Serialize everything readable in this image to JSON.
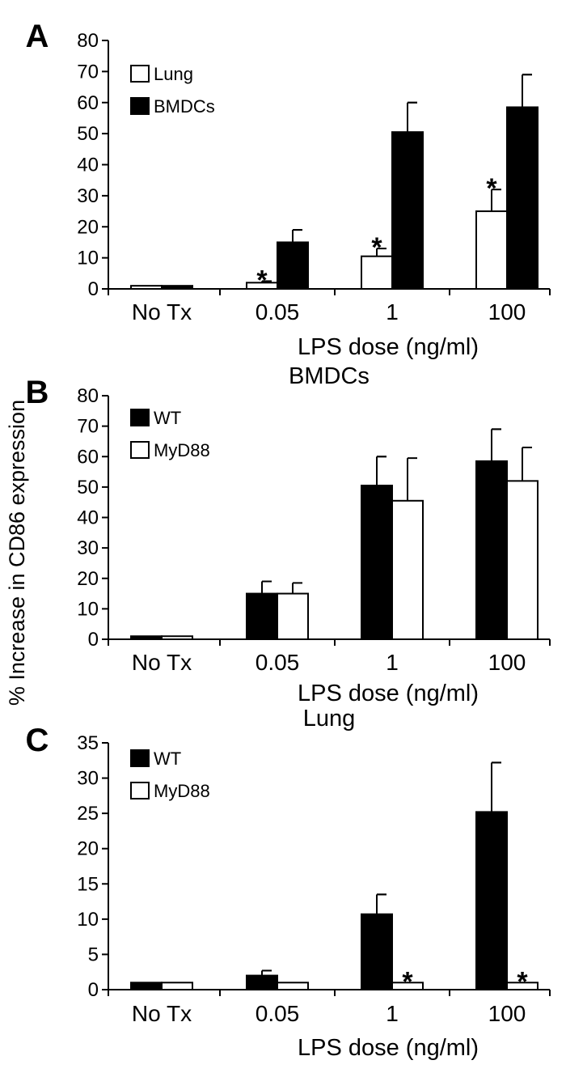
{
  "figure": {
    "ylabel": "% Increase in CD86 expression"
  },
  "chart_data": [
    {
      "type": "bar",
      "panel_letter": "A",
      "title": "",
      "xlabel": "LPS dose (ng/ml)",
      "ylabel": "% Increase in CD86 expression",
      "categories": [
        "No Tx",
        "0.05",
        "1",
        "100"
      ],
      "ylim": [
        0,
        80
      ],
      "yticks": [
        "0",
        "10",
        "20",
        "30",
        "40",
        "50",
        "60",
        "70",
        "80"
      ],
      "legend_position": "top-left",
      "series": [
        {
          "name": "Lung",
          "color": "#ffffff",
          "values": [
            1,
            2,
            10.5,
            25
          ],
          "errors": [
            0,
            0.5,
            2.5,
            7
          ],
          "significant": [
            false,
            true,
            true,
            true
          ]
        },
        {
          "name": "BMDCs",
          "color": "#000000",
          "values": [
            1,
            15,
            50.5,
            58.5
          ],
          "errors": [
            0,
            4,
            9.5,
            10.5
          ],
          "significant": [
            false,
            false,
            false,
            false
          ]
        }
      ],
      "annotation_symbol": "*"
    },
    {
      "type": "bar",
      "panel_letter": "B",
      "title": "BMDCs",
      "xlabel": "LPS dose (ng/ml)",
      "ylabel": "% Increase in CD86 expression",
      "categories": [
        "No Tx",
        "0.05",
        "1",
        "100"
      ],
      "ylim": [
        0,
        80
      ],
      "yticks": [
        "0",
        "10",
        "20",
        "30",
        "40",
        "50",
        "60",
        "70",
        "80"
      ],
      "legend_position": "top-left",
      "series": [
        {
          "name": "WT",
          "color": "#000000",
          "values": [
            1,
            15,
            50.5,
            58.5
          ],
          "errors": [
            0,
            4,
            9.5,
            10.5
          ],
          "significant": [
            false,
            false,
            false,
            false
          ]
        },
        {
          "name": "MyD88",
          "color": "#ffffff",
          "values": [
            1,
            15,
            45.5,
            52
          ],
          "errors": [
            0,
            3.5,
            14,
            11
          ],
          "significant": [
            false,
            false,
            false,
            false
          ]
        }
      ],
      "annotation_symbol": "*"
    },
    {
      "type": "bar",
      "panel_letter": "C",
      "title": "Lung",
      "xlabel": "LPS dose (ng/ml)",
      "ylabel": "% Increase in CD86 expression",
      "categories": [
        "No Tx",
        "0.05",
        "1",
        "100"
      ],
      "ylim": [
        0,
        35
      ],
      "yticks": [
        "0",
        "5",
        "10",
        "15",
        "20",
        "25",
        "30",
        "35"
      ],
      "legend_position": "top-left",
      "series": [
        {
          "name": "WT",
          "color": "#000000",
          "values": [
            1,
            2,
            10.7,
            25.2
          ],
          "errors": [
            0,
            0.7,
            2.8,
            7
          ],
          "significant": [
            false,
            false,
            false,
            false
          ]
        },
        {
          "name": "MyD88",
          "color": "#ffffff",
          "values": [
            1,
            1,
            1,
            1
          ],
          "errors": [
            0,
            0,
            0,
            0
          ],
          "significant": [
            false,
            false,
            true,
            true
          ]
        }
      ],
      "annotation_symbol": "*"
    }
  ]
}
